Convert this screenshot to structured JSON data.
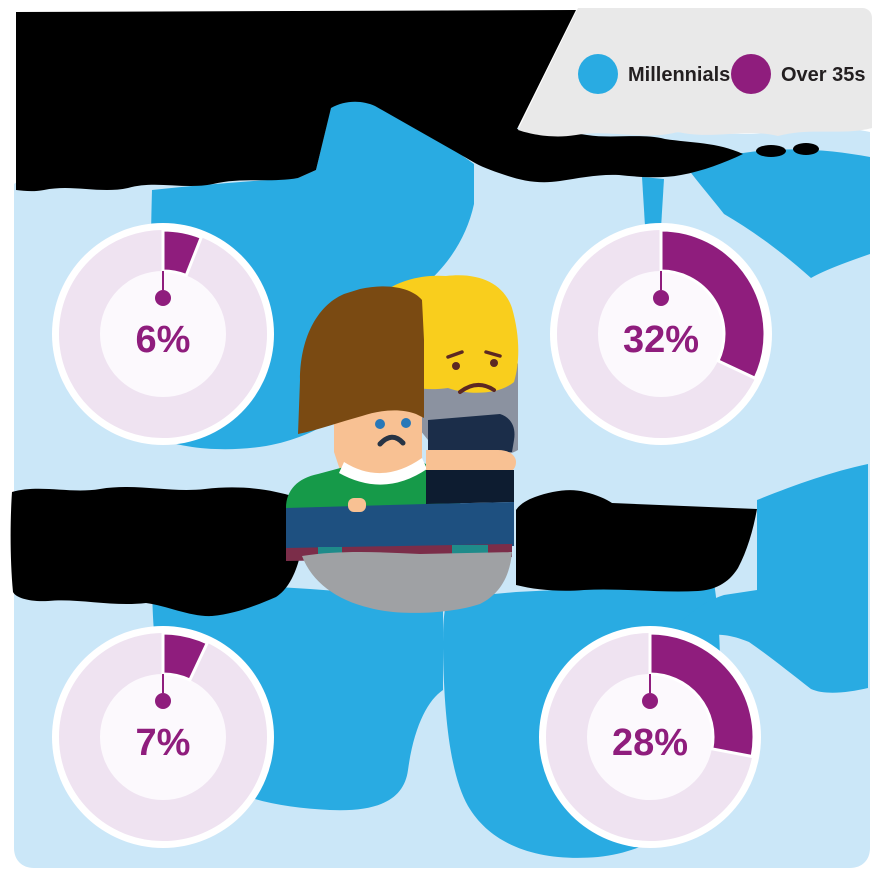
{
  "colors": {
    "bright_blue": "#29ABE2",
    "light_blue": "#CBE7F8",
    "purple": "#8F1D7D",
    "ring": "#EFE3F1",
    "ring_center": "#FCF9FD",
    "legend_bg": "#E9E9E9",
    "text_dark": "#231F20",
    "redaction_black": "#000000"
  },
  "legend": {
    "items": [
      {
        "label": "Millennials",
        "color": "#29ABE2"
      },
      {
        "label": "Over 35s",
        "color": "#8F1D7D"
      }
    ]
  },
  "panels": [
    {
      "position": "top-left",
      "label": "6%",
      "percent": 6
    },
    {
      "position": "top-right",
      "label": "32%",
      "percent": 32
    },
    {
      "position": "bottom-left",
      "label": "7%",
      "percent": 7
    },
    {
      "position": "bottom-right",
      "label": "28%",
      "percent": 28
    }
  ],
  "illustration": {
    "description": "Sad person in a green jumper holding a dark phone showing a sad yellow emoji"
  },
  "redactions": {
    "note": "Headline and the four caption blocks are rendered as solid black shapes (text illegible in source image)",
    "blocks": [
      "main-title",
      "mid-left-caption",
      "mid-right-caption"
    ]
  },
  "chart_data": {
    "type": "pie",
    "subtype": "donut",
    "legend": [
      "Millennials",
      "Over 35s"
    ],
    "legend_position": "top-right",
    "charts": [
      {
        "position": "top-left",
        "center_label": "6%",
        "series": [
          {
            "name": "Over 35s",
            "value": 6
          },
          {
            "name": "remainder",
            "value": 94
          }
        ]
      },
      {
        "position": "top-right",
        "center_label": "32%",
        "series": [
          {
            "name": "Over 35s",
            "value": 32
          },
          {
            "name": "remainder",
            "value": 68
          }
        ]
      },
      {
        "position": "bottom-left",
        "center_label": "7%",
        "series": [
          {
            "name": "Over 35s",
            "value": 7
          },
          {
            "name": "remainder",
            "value": 93
          }
        ]
      },
      {
        "position": "bottom-right",
        "center_label": "28%",
        "series": [
          {
            "name": "Over 35s",
            "value": 28
          },
          {
            "name": "remainder",
            "value": 72
          }
        ]
      }
    ]
  }
}
